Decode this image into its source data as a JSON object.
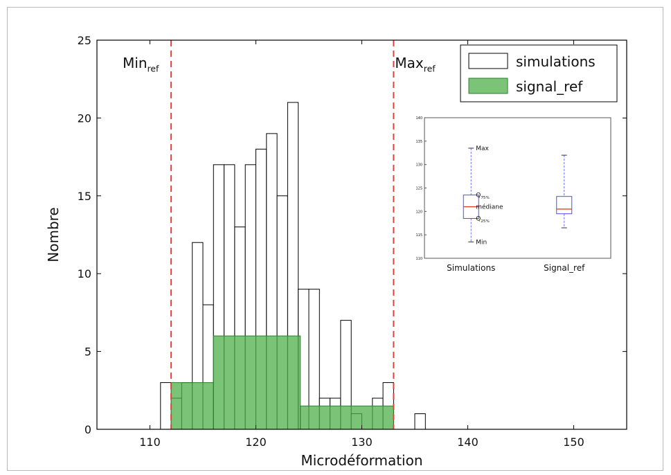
{
  "chart_data": {
    "type": "bar",
    "xlabel": "Microdéformation",
    "ylabel": "Nombre",
    "xlim": [
      105,
      155
    ],
    "ylim": [
      0,
      25
    ],
    "xticks": [
      "110",
      "120",
      "130",
      "140",
      "150"
    ],
    "yticks": [
      "0",
      "5",
      "10",
      "15",
      "20",
      "25"
    ],
    "bin_width": 1,
    "series": [
      {
        "name": "simulations",
        "color": "#ffffff",
        "bins": [
          [
            111,
            3
          ],
          [
            112,
            2
          ],
          [
            113,
            3
          ],
          [
            114,
            12
          ],
          [
            115,
            8
          ],
          [
            116,
            17
          ],
          [
            117,
            17
          ],
          [
            118,
            13
          ],
          [
            119,
            17
          ],
          [
            120,
            18
          ],
          [
            121,
            19
          ],
          [
            122,
            15
          ],
          [
            123,
            21
          ],
          [
            124,
            9
          ],
          [
            125,
            9
          ],
          [
            126,
            2
          ],
          [
            127,
            2
          ],
          [
            128,
            7
          ],
          [
            129,
            1
          ],
          [
            130,
            0
          ],
          [
            131,
            2
          ],
          [
            132,
            3
          ],
          [
            133,
            0
          ],
          [
            134,
            0
          ],
          [
            135,
            1
          ]
        ]
      },
      {
        "name": "signal_ref",
        "color": "#4daf4a",
        "bins": [
          [
            112,
            3
          ],
          [
            116,
            6
          ],
          [
            124.2,
            1.5
          ]
        ],
        "widths": [
          4,
          8.2,
          8.8
        ]
      }
    ],
    "reference_lines": [
      {
        "x": 112,
        "label_main": "Min",
        "label_sub": "ref"
      },
      {
        "x": 133,
        "label_main": "Max",
        "label_sub": "ref"
      }
    ],
    "legend": {
      "placement": "top-right"
    },
    "inset": {
      "type": "box",
      "categories": [
        "Simulations",
        "Signal_ref"
      ],
      "ylim": [
        110,
        140
      ],
      "yticks": [
        "110",
        "115",
        "120",
        "125",
        "130",
        "135",
        "140"
      ],
      "boxes": [
        {
          "min": 113.5,
          "q25": 118.5,
          "median": 121,
          "q75": 123.5,
          "max": 133.5
        },
        {
          "min": 116.5,
          "q25": 119.5,
          "median": 120.5,
          "q75": 123.2,
          "max": 132
        }
      ],
      "annotations": [
        {
          "main": "Max",
          "sub": "",
          "y": 133.5
        },
        {
          "main": "Q",
          "sub": "75%",
          "y": 123.5
        },
        {
          "main": "médiane",
          "sub": "",
          "y": 121
        },
        {
          "main": "Q",
          "sub": "25%",
          "y": 118.5
        },
        {
          "main": "Min",
          "sub": "",
          "y": 113.5
        }
      ]
    }
  }
}
